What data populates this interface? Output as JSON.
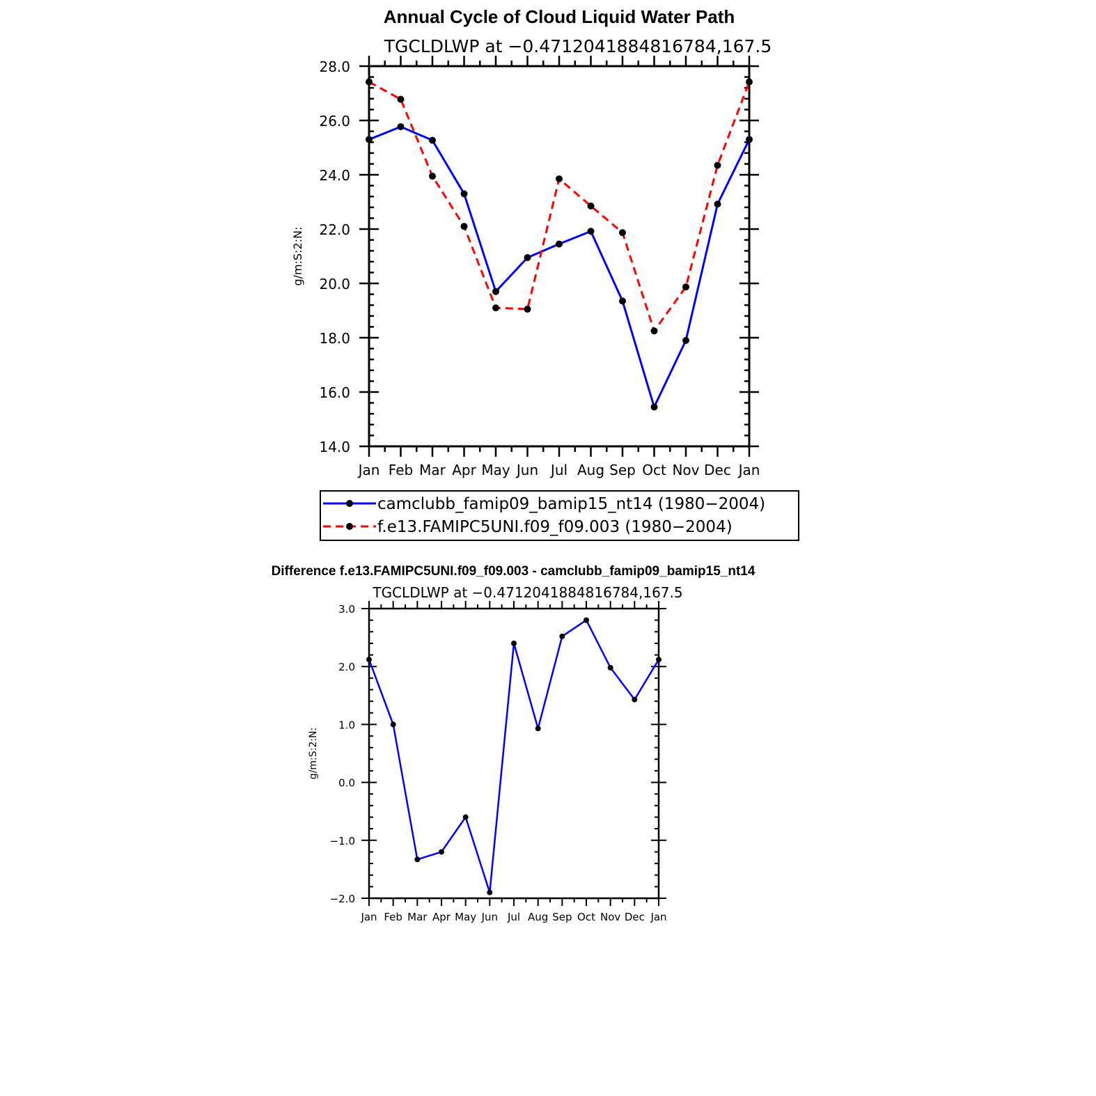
{
  "main_title": "Annual Cycle of Cloud Liquid Water Path",
  "diff_title": "Difference f.e13.FAMIPC5UNI.f09_f09.003 - camclubb_famip09_bamip15_nt14",
  "colors": {
    "series1": "#0000ff",
    "series2": "#ff0000",
    "marker": "#000000",
    "axis": "#000000"
  },
  "chart_data": [
    {
      "type": "line",
      "title": "TGCLDLWP at −0.4712041884816784,167.5",
      "xlabel": "",
      "ylabel": "g/m:S:2:N:",
      "categories": [
        "Jan",
        "Feb",
        "Mar",
        "Apr",
        "May",
        "Jun",
        "Jul",
        "Aug",
        "Sep",
        "Oct",
        "Nov",
        "Dec",
        "Jan"
      ],
      "ylim": [
        14.0,
        28.0
      ],
      "yticks": [
        "14.0",
        "16.0",
        "18.0",
        "20.0",
        "22.0",
        "24.0",
        "26.0",
        "28.0"
      ],
      "series": [
        {
          "name": "camclubb_famip09_bamip15_nt14 (1980−2004)",
          "style": "solid",
          "values": [
            25.3,
            25.77,
            25.27,
            23.3,
            19.7,
            20.95,
            21.45,
            21.92,
            19.35,
            15.45,
            17.9,
            22.92,
            25.3
          ]
        },
        {
          "name": "f.e13.FAMIPC5UNI.f09_f09.003 (1980−2004)",
          "style": "dashed",
          "values": [
            27.42,
            26.78,
            23.95,
            22.1,
            19.1,
            19.05,
            23.85,
            22.85,
            21.87,
            18.25,
            19.87,
            24.35,
            27.42
          ]
        }
      ],
      "legend_position": "bottom"
    },
    {
      "type": "line",
      "title": "TGCLDLWP at −0.4712041884816784,167.5",
      "xlabel": "",
      "ylabel": "g/m:S:2:N:",
      "categories": [
        "Jan",
        "Feb",
        "Mar",
        "Apr",
        "May",
        "Jun",
        "Jul",
        "Aug",
        "Sep",
        "Oct",
        "Nov",
        "Dec",
        "Jan"
      ],
      "ylim": [
        -2.0,
        3.0
      ],
      "yticks": [
        "−2.0",
        "−1.0",
        "0.0",
        "1.0",
        "2.0",
        "3.0"
      ],
      "series": [
        {
          "name": "difference",
          "style": "solid",
          "values": [
            2.12,
            1.0,
            -1.33,
            -1.2,
            -0.6,
            -1.9,
            2.4,
            0.93,
            2.52,
            2.8,
            1.98,
            1.43,
            2.12
          ]
        }
      ]
    }
  ]
}
